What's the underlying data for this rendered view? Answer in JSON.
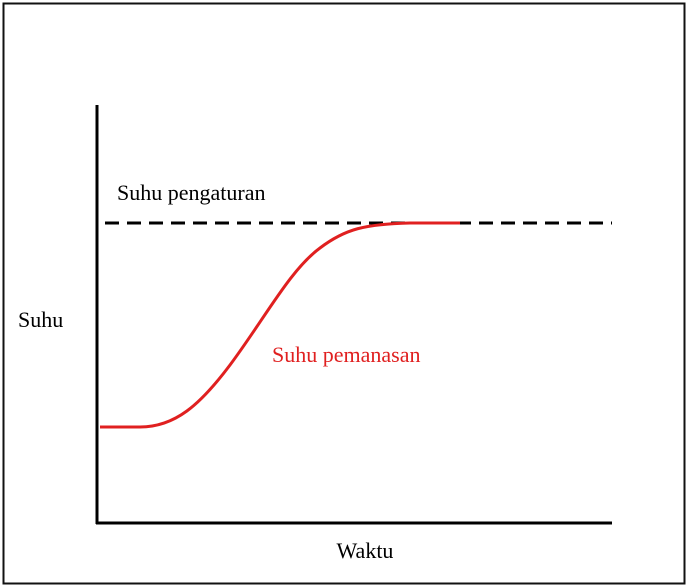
{
  "labels": {
    "setpoint": "Suhu pengaturan",
    "heating": "Suhu pemanasan",
    "y_axis": "Suhu",
    "x_axis": "Waktu"
  }
}
